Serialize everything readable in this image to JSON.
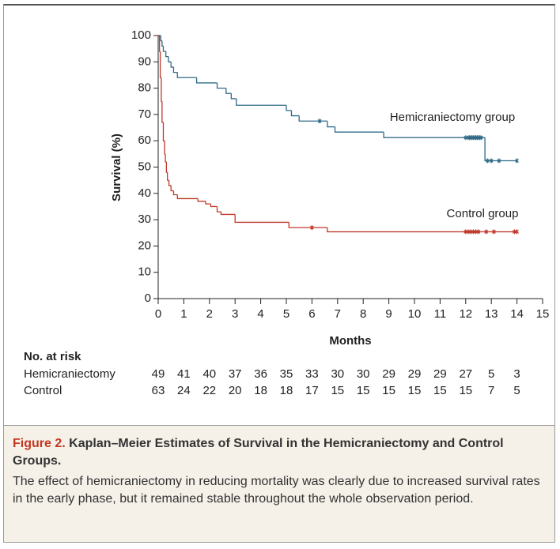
{
  "chart_data": {
    "type": "line",
    "step": true,
    "y_label": "Survival (%)",
    "x_label": "Months",
    "xlim": [
      0,
      15
    ],
    "xticks": [
      0,
      1,
      2,
      3,
      4,
      5,
      6,
      7,
      8,
      9,
      10,
      11,
      12,
      13,
      14,
      15
    ],
    "ylim": [
      0,
      100
    ],
    "yticks": [
      0,
      10,
      20,
      30,
      40,
      50,
      60,
      70,
      80,
      90,
      100
    ],
    "series": [
      {
        "name": "Hemicraniectomy group",
        "color": "#2f6b87",
        "x": [
          0,
          0.1,
          0.15,
          0.2,
          0.3,
          0.4,
          0.5,
          0.6,
          0.75,
          1.5,
          2.3,
          2.65,
          2.85,
          3.05,
          5.0,
          5.2,
          5.5,
          6.6,
          6.9,
          8.8,
          12.75,
          14.0
        ],
        "values": [
          100,
          98,
          96,
          94,
          92,
          90,
          88,
          86,
          84,
          82,
          80,
          78,
          76,
          73.5,
          71.5,
          69.5,
          67.5,
          65.3,
          63.3,
          61.2,
          52.4,
          52.4
        ],
        "censor_x": [
          6.3,
          12.0,
          12.1,
          12.15,
          12.2,
          12.25,
          12.3,
          12.35,
          12.4,
          12.45,
          12.5,
          12.55,
          12.6,
          12.85,
          13.0,
          13.3,
          14.0
        ],
        "censor_values": [
          67.5,
          61.2,
          61.2,
          61.2,
          61.2,
          61.2,
          61.2,
          61.2,
          61.2,
          61.2,
          61.2,
          61.2,
          61.2,
          52.4,
          52.4,
          52.4,
          52.4
        ]
      },
      {
        "name": "Control group",
        "color": "#c0392b",
        "x": [
          0,
          0.05,
          0.08,
          0.12,
          0.15,
          0.2,
          0.25,
          0.28,
          0.32,
          0.36,
          0.42,
          0.5,
          0.6,
          0.75,
          1.55,
          1.85,
          2.05,
          2.3,
          2.45,
          3.0,
          5.1,
          6.6,
          14.0
        ],
        "values": [
          100,
          94,
          84,
          75,
          67,
          60,
          55,
          52,
          48,
          45,
          43,
          41,
          39.5,
          38,
          37,
          36,
          35,
          33,
          32,
          29,
          27,
          25.4,
          25.4
        ],
        "censor_x": [
          6.0,
          12.0,
          12.1,
          12.2,
          12.3,
          12.4,
          12.5,
          12.8,
          13.1,
          13.9,
          14.0
        ],
        "censor_values": [
          27,
          25.4,
          25.4,
          25.4,
          25.4,
          25.4,
          25.4,
          25.4,
          25.4,
          25.4,
          25.4
        ]
      }
    ],
    "risk_table": {
      "title": "No. at risk",
      "rows": [
        {
          "label": "Hemicraniectomy",
          "values": [
            49,
            41,
            40,
            37,
            36,
            35,
            33,
            30,
            30,
            29,
            29,
            29,
            27,
            5,
            3
          ]
        },
        {
          "label": "Control",
          "values": [
            63,
            24,
            22,
            20,
            18,
            18,
            17,
            15,
            15,
            15,
            15,
            15,
            15,
            7,
            5
          ]
        }
      ]
    }
  },
  "caption": {
    "label": "Figure 2.",
    "title": "Kaplan–Meier Estimates of Survival in the Hemicraniectomy and Control Groups.",
    "text": "The effect of hemicraniectomy in reducing mortality was clearly due to increased survival rates in the early phase, but it remained stable throughout the whole observation period."
  }
}
